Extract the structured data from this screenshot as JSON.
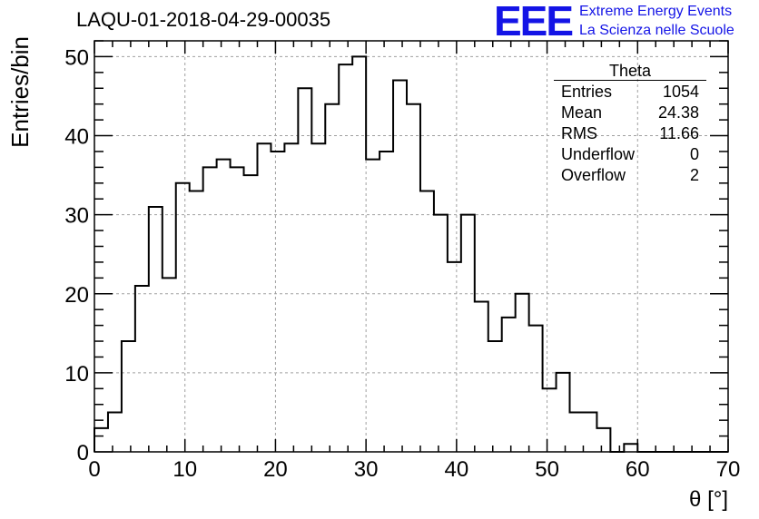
{
  "header": {
    "title": "LAQU-01-2018-04-29-00035",
    "logo_mark": "EEE",
    "logo_line1": "Extreme Energy Events",
    "logo_line2": "La Scienza nelle Scuole"
  },
  "stats_box": {
    "name": "Theta",
    "rows": [
      {
        "label": "Entries",
        "value": "1054"
      },
      {
        "label": "Mean",
        "value": "24.38"
      },
      {
        "label": "RMS",
        "value": "11.66"
      },
      {
        "label": "Underflow",
        "value": "0"
      },
      {
        "label": "Overflow",
        "value": "2"
      }
    ]
  },
  "colors": {
    "line": "#000000",
    "grid": "#a0a0a0",
    "logo": "#1414e6"
  },
  "chart_data": {
    "type": "bar",
    "title": "LAQU-01-2018-04-29-00035",
    "xlabel": "θ [°]",
    "ylabel": "Entries/bin",
    "xlim": [
      0,
      70
    ],
    "ylim": [
      0,
      52
    ],
    "x_ticks": [
      0,
      10,
      20,
      30,
      40,
      50,
      60,
      70
    ],
    "y_ticks": [
      0,
      10,
      20,
      30,
      40,
      50
    ],
    "grid": true,
    "bin_width": 1.5,
    "bin_edges_start": 0,
    "values": [
      3,
      5,
      14,
      21,
      31,
      22,
      34,
      33,
      36,
      37,
      36,
      35,
      39,
      38,
      39,
      46,
      39,
      44,
      49,
      50,
      37,
      38,
      47,
      44,
      33,
      30,
      24,
      30,
      19,
      14,
      17,
      20,
      16,
      8,
      10,
      5,
      5,
      3,
      0,
      1,
      0,
      0,
      0,
      0,
      0,
      0,
      0
    ]
  }
}
